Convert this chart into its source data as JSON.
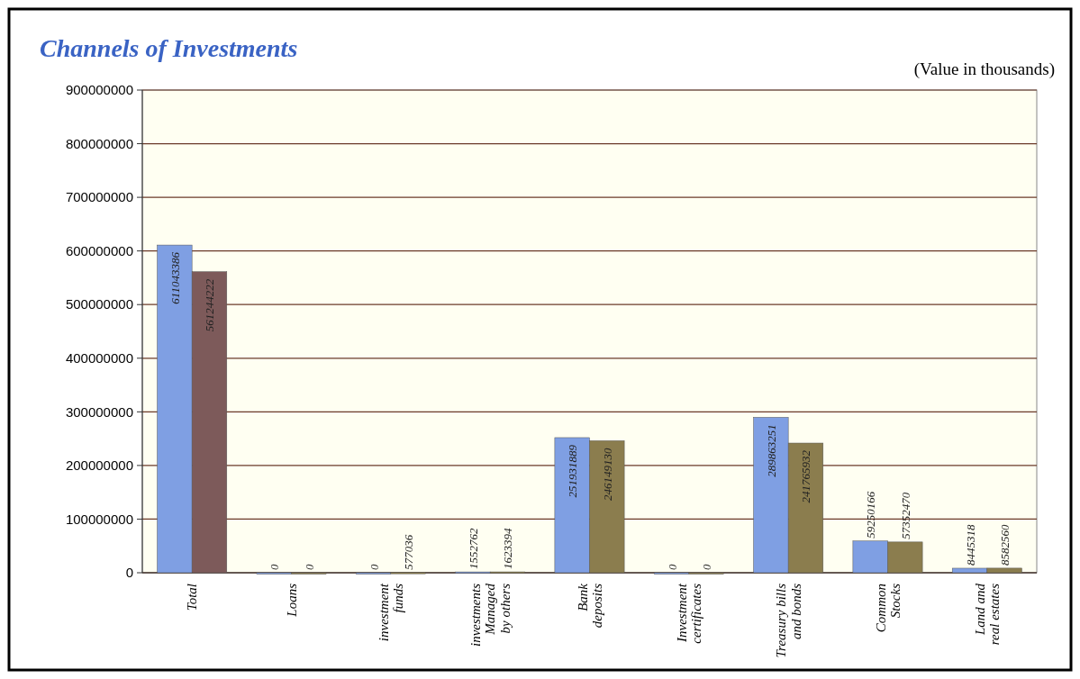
{
  "chart_data": {
    "type": "bar",
    "title": "Channels of Investments",
    "annotations": [
      "(Value in thousands)"
    ],
    "categories": [
      "Total",
      "Loans",
      "investment\nfunds",
      "investments\nManaged\nby others",
      "Bank\ndeposits",
      "Investment\ncertificates",
      "Treasury bills\nand bonds",
      "Common\nStocks",
      "Land and\nreal estates"
    ],
    "series": [
      {
        "color": "#7f9fe3",
        "values": [
          611043386,
          0,
          0,
          1552762,
          251931889,
          0,
          289863251,
          59250166,
          8445318
        ]
      },
      {
        "colors": [
          "#7d5a5a",
          "#8b7d4e",
          "#8b7d4e",
          "#8b7d4e",
          "#8b7d4e",
          "#8b7d4e",
          "#8b7d4e",
          "#8b7d4e",
          "#8b7d4e"
        ],
        "values": [
          561244222,
          0,
          577036,
          1623394,
          246149130,
          0,
          241765932,
          57352470,
          8582560
        ]
      }
    ],
    "ylim": [
      0,
      900000000
    ],
    "yticks": [
      0,
      100000000,
      200000000,
      300000000,
      400000000,
      500000000,
      600000000,
      700000000,
      800000000,
      900000000
    ],
    "grid": "y",
    "data_labels": true
  }
}
